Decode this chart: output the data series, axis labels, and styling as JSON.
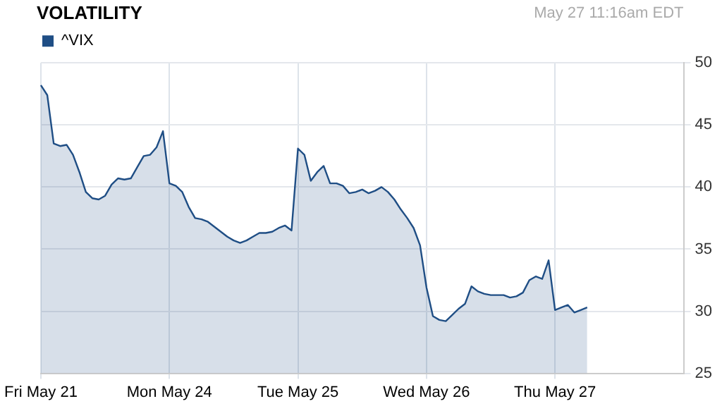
{
  "chart_data": {
    "type": "area",
    "title": "VOLATILITY",
    "annotations": [
      "May 27 11:16am EDT"
    ],
    "categories": [
      "Fri May 21",
      null,
      null,
      null,
      null,
      null,
      null,
      null,
      null,
      null,
      null,
      null,
      null,
      null,
      null,
      null,
      null,
      null,
      null,
      null,
      "Mon May 24",
      null,
      null,
      null,
      null,
      null,
      null,
      null,
      null,
      null,
      null,
      null,
      null,
      null,
      null,
      null,
      null,
      null,
      null,
      null,
      "Tue May 25",
      null,
      null,
      null,
      null,
      null,
      null,
      null,
      null,
      null,
      null,
      null,
      null,
      null,
      null,
      null,
      null,
      null,
      null,
      null,
      "Wed May 26",
      null,
      null,
      null,
      null,
      null,
      null,
      null,
      null,
      null,
      null,
      null,
      null,
      null,
      null,
      null,
      null,
      null,
      null,
      null,
      "Thu May 27",
      null,
      null,
      null,
      null,
      null,
      null,
      null,
      null,
      null,
      null,
      null,
      null,
      null,
      null,
      null,
      null,
      null,
      null,
      null,
      null
    ],
    "ylim": [
      25,
      50
    ],
    "yticks": [
      25,
      30,
      35,
      40,
      45,
      50
    ],
    "grid": true,
    "legend": "top left",
    "marker": "none",
    "series": [
      {
        "name": "^VIX",
        "color": "#1f4e85",
        "values": [
          48.2,
          47.4,
          43.5,
          43.3,
          43.4,
          42.6,
          41.2,
          39.6,
          39.1,
          39.0,
          39.3,
          40.2,
          40.7,
          40.6,
          40.7,
          41.6,
          42.5,
          42.6,
          43.2,
          44.5,
          40.3,
          40.1,
          39.6,
          38.4,
          37.5,
          37.4,
          37.2,
          36.8,
          36.4,
          36.0,
          35.7,
          35.5,
          35.7,
          36.0,
          36.3,
          36.3,
          36.4,
          36.7,
          36.9,
          36.5,
          43.1,
          42.6,
          40.5,
          41.2,
          41.7,
          40.3,
          40.3,
          40.1,
          39.5,
          39.6,
          39.8,
          39.5,
          39.7,
          40.0,
          39.6,
          39.0,
          38.2,
          37.5,
          36.7,
          35.3,
          31.9,
          29.6,
          29.3,
          29.2,
          29.7,
          30.2,
          30.6,
          32.0,
          31.6,
          31.4,
          31.3,
          31.3,
          31.3,
          31.1,
          31.2,
          31.5,
          32.5,
          32.8,
          32.6,
          34.1,
          30.1,
          30.3,
          30.5,
          29.9,
          30.1,
          30.3,
          null,
          null,
          null,
          null,
          null,
          null,
          null,
          null,
          null,
          null,
          null,
          null,
          null,
          null,
          null
        ]
      }
    ]
  }
}
